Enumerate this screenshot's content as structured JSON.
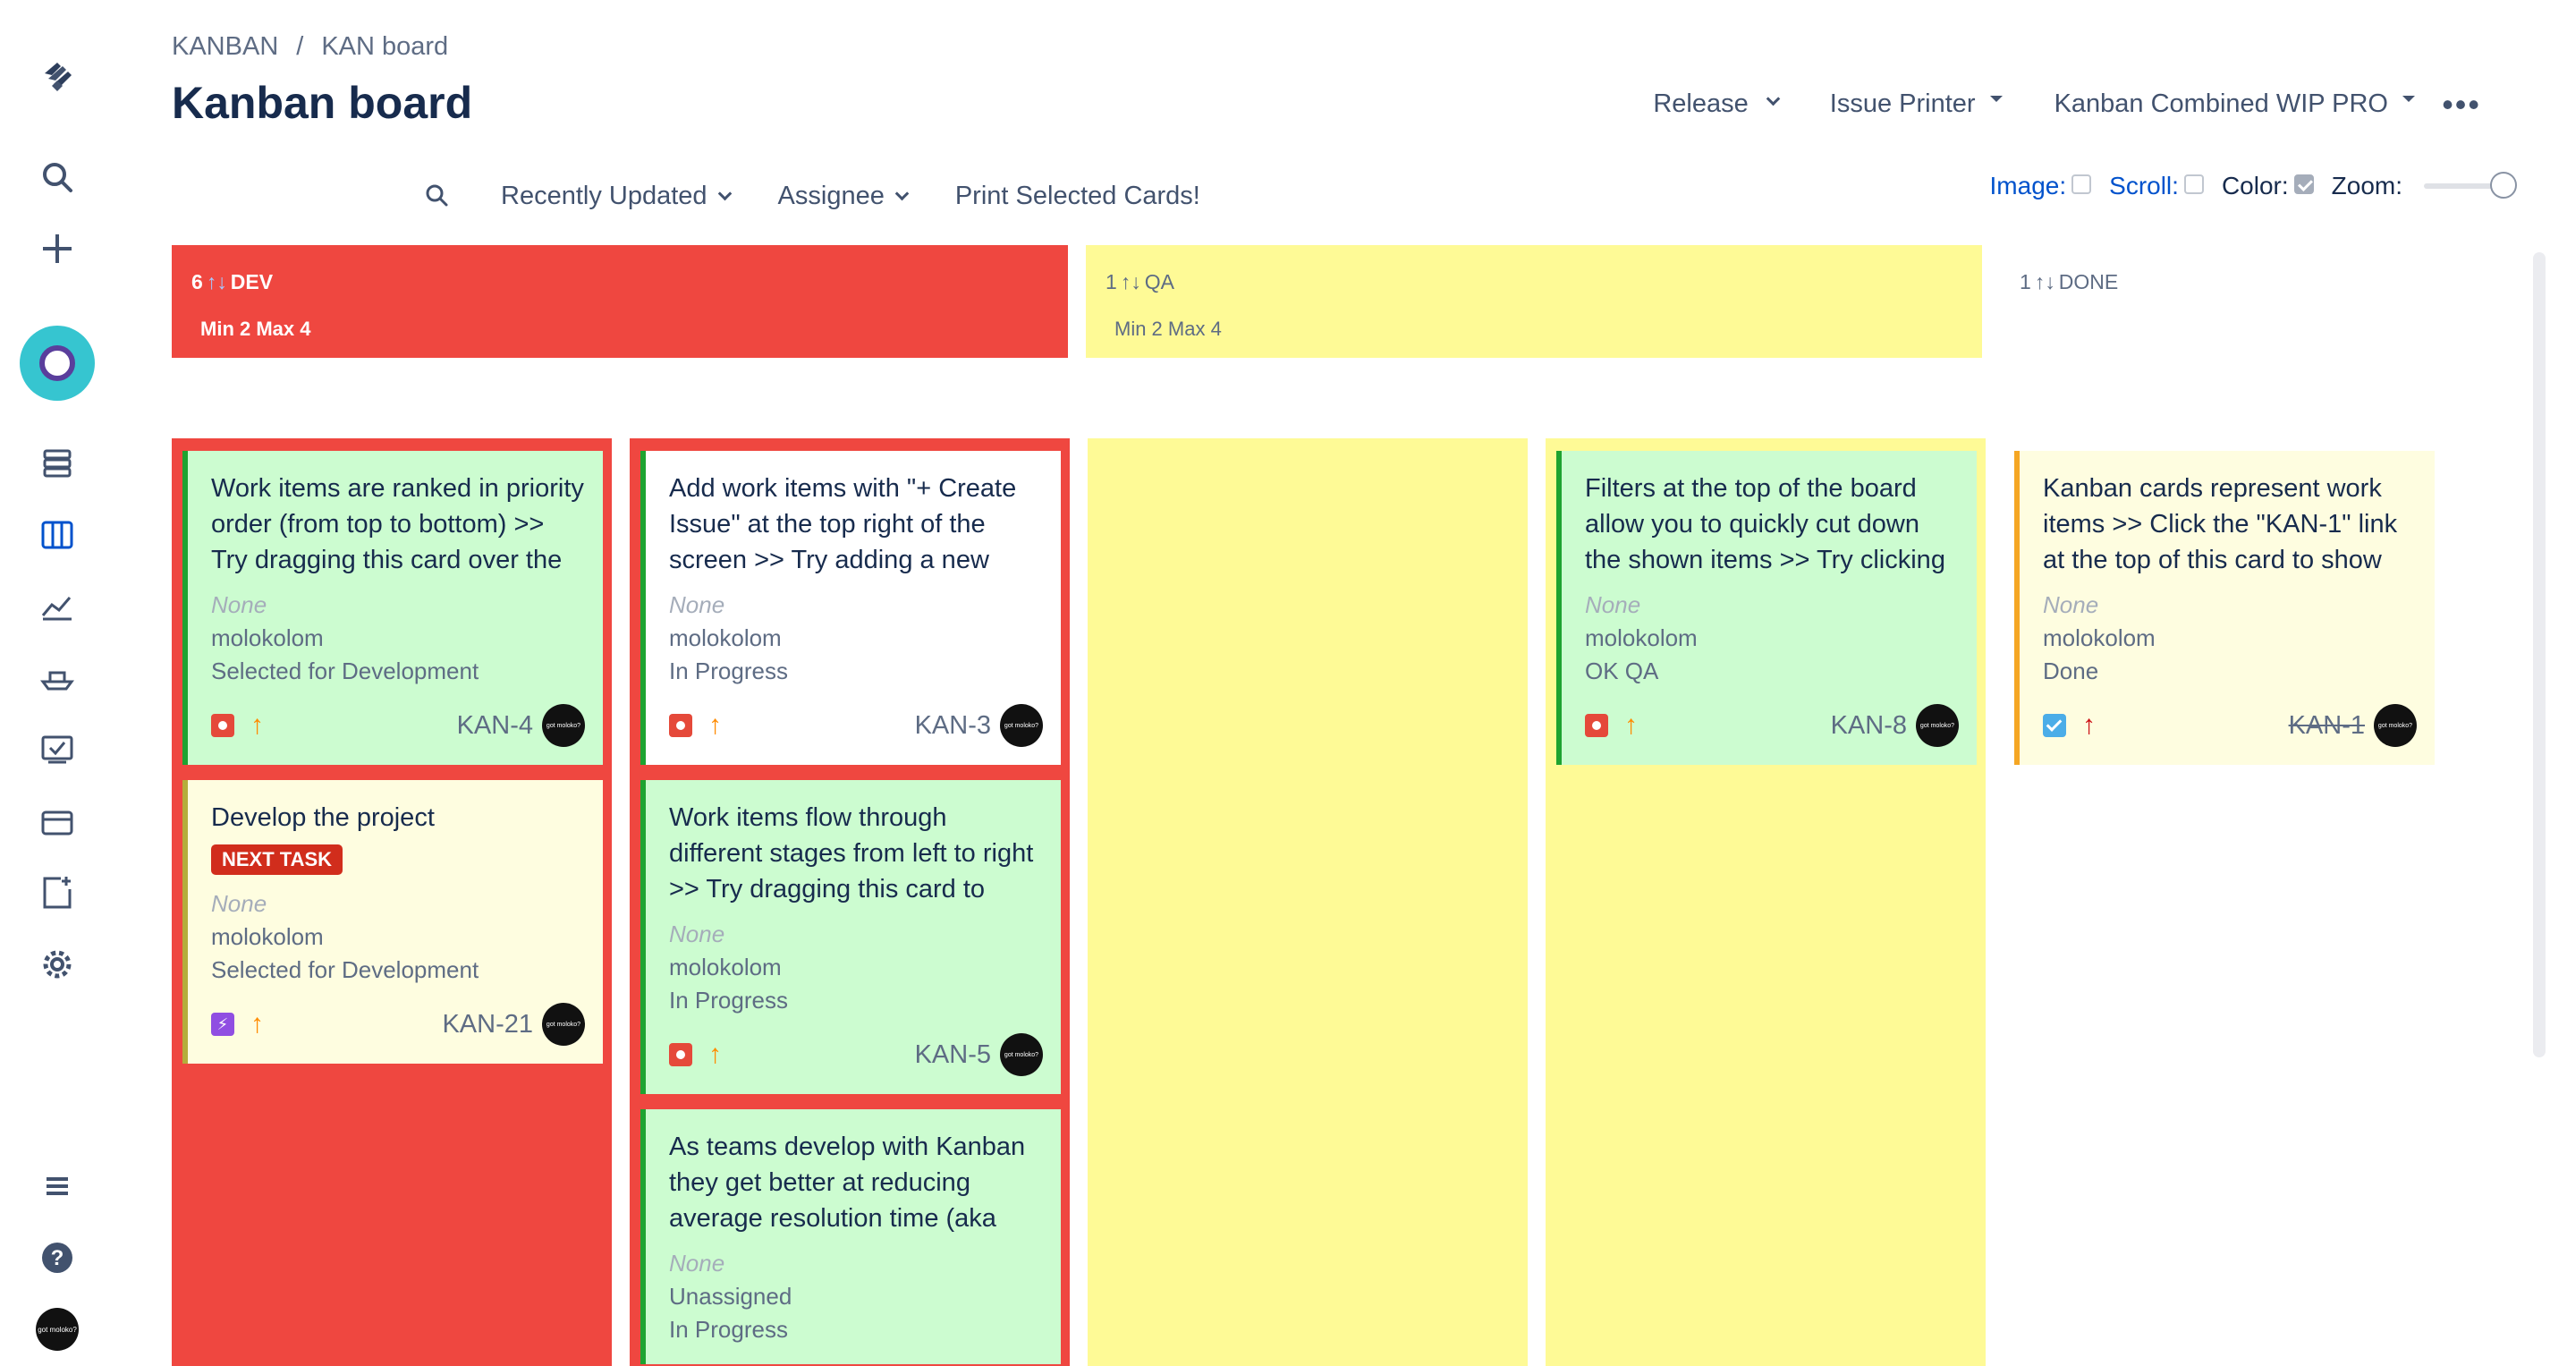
{
  "breadcrumb": {
    "project": "KANBAN",
    "separator": "/",
    "board": "KAN board"
  },
  "page_title": "Kanban board",
  "top_actions": {
    "release": "Release",
    "issue_printer": "Issue Printer",
    "wip": "Kanban Combined WIP PRO"
  },
  "filters": {
    "recently_updated": "Recently Updated",
    "assignee": "Assignee",
    "print": "Print Selected Cards!"
  },
  "view_options": {
    "image": "Image:",
    "scroll": "Scroll:",
    "color": "Color:",
    "zoom": "Zoom:",
    "image_checked": false,
    "scroll_checked": false,
    "color_checked": true
  },
  "columns": {
    "dev": {
      "count": "6",
      "name": "DEV",
      "limits": "Min 2  Max 4",
      "color": "#ef4740"
    },
    "qa": {
      "count": "1",
      "name": "QA",
      "limits": "Min 2  Max 4",
      "color": "#fefa96"
    },
    "done": {
      "count": "1",
      "name": "DONE"
    }
  },
  "cards": {
    "kan4": {
      "summary": "Work items are ranked in priority order (from top to bottom) >> Try dragging this card over the card",
      "fix": "None",
      "assignee": "molokolom",
      "status": "Selected for Development",
      "key": "KAN-4",
      "type": "bug",
      "priority": "medium"
    },
    "kan21": {
      "summary": "Develop the project",
      "label": "NEXT TASK",
      "fix": "None",
      "assignee": "molokolom",
      "status": "Selected for Development",
      "key": "KAN-21",
      "type": "epic",
      "priority": "medium"
    },
    "kan3": {
      "summary": "Add work items with \"+ Create Issue\" at the top right of the screen >> Try adding a new card",
      "fix": "None",
      "assignee": "molokolom",
      "status": "In Progress",
      "key": "KAN-3",
      "type": "bug",
      "priority": "medium"
    },
    "kan5": {
      "summary": "Work items flow through different stages from left to right >> Try dragging this card to \"Selected",
      "fix": "None",
      "assignee": "molokolom",
      "status": "In Progress",
      "key": "KAN-5",
      "type": "bug",
      "priority": "medium"
    },
    "kan6": {
      "summary": "As teams develop with Kanban they get better at reducing average resolution time (aka",
      "fix": "None",
      "assignee": "Unassigned",
      "status": "In Progress"
    },
    "kan8": {
      "summary": "Filters at the top of the board allow you to quickly cut down the shown items >> Try clicking the",
      "fix": "None",
      "assignee": "molokolom",
      "status": "OK QA",
      "key": "KAN-8",
      "type": "bug",
      "priority": "medium"
    },
    "kan1": {
      "summary": "Kanban cards represent work items >> Click the \"KAN-1\" link at the top of this card to show",
      "fix": "None",
      "assignee": "molokolom",
      "status": "Done",
      "key": "KAN-1",
      "type": "task",
      "priority": "highest"
    }
  },
  "avatar_text": "got moloko?"
}
